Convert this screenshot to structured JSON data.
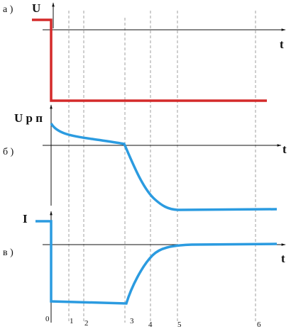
{
  "panels": [
    {
      "label": "а )",
      "y_label": "U",
      "x_label": "t"
    },
    {
      "label": "б )",
      "y_label": "U р п",
      "x_label": "t"
    },
    {
      "label": "в )",
      "y_label": "I",
      "x_label": "t"
    }
  ],
  "time_marks": [
    "0",
    "1",
    "2",
    "3",
    "4",
    "5",
    "6"
  ]
}
